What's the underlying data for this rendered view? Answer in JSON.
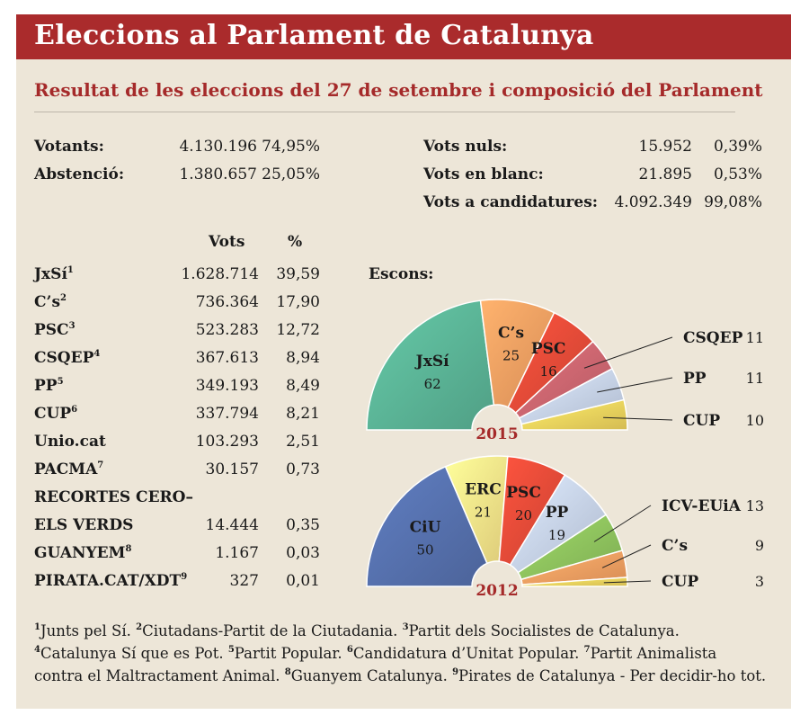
{
  "header": {
    "title": "Eleccions al Parlament de Catalunya",
    "subtitle": "Resultat de les eleccions del 27 de setembre i composició del Parlament"
  },
  "summary_left": [
    {
      "label": "Votants:",
      "value": "4.130.196",
      "pct": "74,95%"
    },
    {
      "label": "Abstenció:",
      "value": "1.380.657",
      "pct": "25,05%"
    }
  ],
  "summary_right": [
    {
      "label": "Vots nuls:",
      "value": "15.952",
      "pct": "0,39%"
    },
    {
      "label": "Vots en blanc:",
      "value": "21.895",
      "pct": "0,53%"
    },
    {
      "label": "Vots a candidatures:",
      "value": "4.092.349",
      "pct": "99,08%"
    }
  ],
  "table": {
    "col_votes": "Vots",
    "col_pct": "%",
    "rows": [
      {
        "party": "JxSí",
        "note": "1",
        "votes": "1.628.714",
        "pct": "39,59"
      },
      {
        "party": "C’s",
        "note": "2",
        "votes": "736.364",
        "pct": "17,90"
      },
      {
        "party": "PSC",
        "note": "3",
        "votes": "523.283",
        "pct": "12,72"
      },
      {
        "party": "CSQEP",
        "note": "4",
        "votes": "367.613",
        "pct": "8,94"
      },
      {
        "party": "PP",
        "note": "5",
        "votes": "349.193",
        "pct": "8,49"
      },
      {
        "party": "CUP",
        "note": "6",
        "votes": "337.794",
        "pct": "8,21"
      },
      {
        "party": "Unio.cat",
        "note": "",
        "votes": "103.293",
        "pct": "2,51"
      },
      {
        "party": "PACMA",
        "note": "7",
        "votes": "30.157",
        "pct": "0,73"
      },
      {
        "party": "RECORTES CERO–",
        "note": "",
        "votes": "",
        "pct": ""
      },
      {
        "party": "ELS VERDS",
        "note": "",
        "votes": "14.444",
        "pct": "0,35"
      },
      {
        "party": "GUANYEM",
        "note": "8",
        "votes": "1.167",
        "pct": "0,03"
      },
      {
        "party": "PIRATA.CAT/XDT",
        "note": "9",
        "votes": "327",
        "pct": "0,01"
      }
    ]
  },
  "seats_label": "Escons:",
  "chart_data": [
    {
      "type": "pie",
      "subtype": "half-donut",
      "title": "2015",
      "categories": [
        "JxSí",
        "C’s",
        "PSC",
        "CSQEP",
        "PP",
        "CUP"
      ],
      "values": [
        62,
        25,
        16,
        11,
        11,
        10
      ],
      "colors": [
        "#5bb597",
        "#f5a062",
        "#e44b38",
        "#cc6670",
        "#c7d3ea",
        "#f1d55e"
      ],
      "labels_inside": [
        "JxSí",
        "C’s",
        "PSC"
      ],
      "labels_outside": [
        "CSQEP",
        "PP",
        "CUP"
      ]
    },
    {
      "type": "pie",
      "subtype": "half-donut",
      "title": "2012",
      "categories": [
        "CiU",
        "ERC",
        "PSC",
        "PP",
        "ICV-EUiA",
        "C’s",
        "CUP"
      ],
      "values": [
        50,
        21,
        20,
        19,
        13,
        9,
        3
      ],
      "colors": [
        "#5671ae",
        "#fbe58a",
        "#e44b38",
        "#c7d3ea",
        "#8fc45e",
        "#f5a062",
        "#f1d55e"
      ],
      "labels_inside": [
        "CiU",
        "ERC",
        "PSC",
        "PP"
      ],
      "labels_outside": [
        "ICV-EUiA",
        "C’s",
        "CUP"
      ]
    }
  ],
  "footnotes": [
    [
      {
        "n": "1",
        "t": "Junts pel Sí. "
      },
      {
        "n": "2",
        "t": "Ciutadans-Partit de la Ciutadania. "
      },
      {
        "n": "3",
        "t": "Partit dels Socialistes de Catalunya."
      }
    ],
    [
      {
        "n": "4",
        "t": "Catalunya Sí que es Pot. "
      },
      {
        "n": "5",
        "t": "Partit Popular. "
      },
      {
        "n": "6",
        "t": "Candidatura d’Unitat Popular. "
      },
      {
        "n": "7",
        "t": "Partit Animalista"
      }
    ],
    [
      {
        "n": "",
        "t": "contra el Maltractament Animal. "
      },
      {
        "n": "8",
        "t": "Guanyem Catalunya. "
      },
      {
        "n": "9",
        "t": "Pirates de Catalunya - Per decidir-ho tot."
      }
    ]
  ]
}
